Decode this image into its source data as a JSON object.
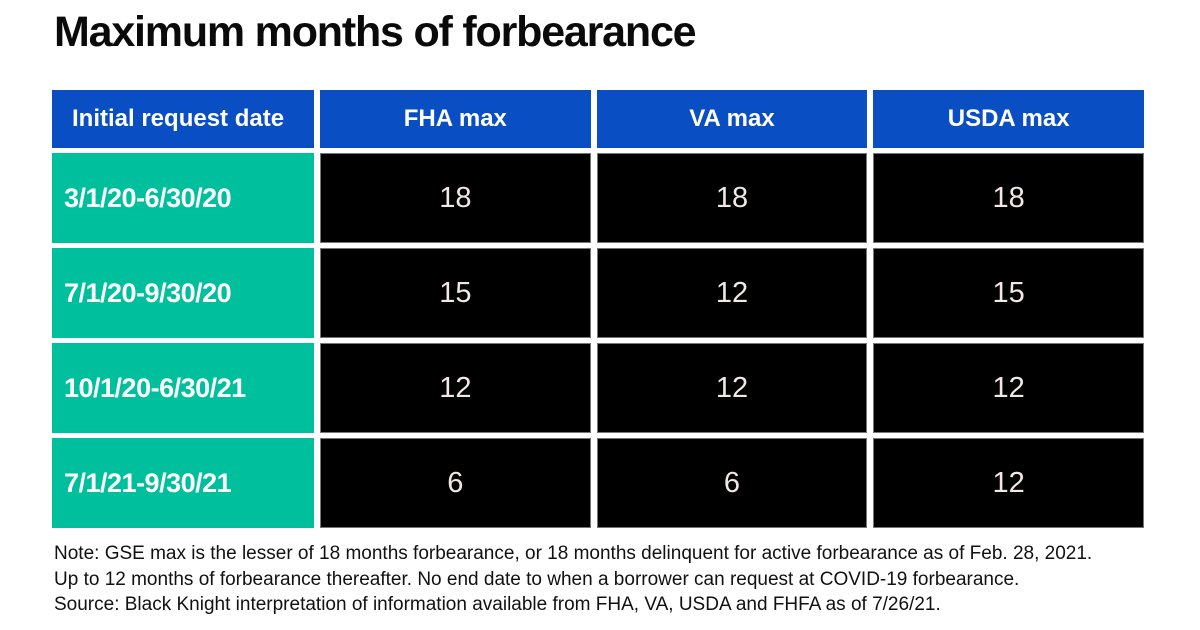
{
  "title": "Maximum months of forbearance",
  "colors": {
    "header_bg": "#0a4ec4",
    "date_bg": "#00bf9d",
    "value_bg": "#000000",
    "header_text": "#ffffff",
    "date_text": "#ffffff",
    "value_text": "#f2e7e7",
    "title_text": "#0a0a0a",
    "note_text": "#111111"
  },
  "table": {
    "columns": [
      "Initial request date",
      "FHA max",
      "VA max",
      "USDA max"
    ],
    "rows": [
      {
        "date": "3/1/20-6/30/20",
        "values": [
          "18",
          "18",
          "18"
        ]
      },
      {
        "date": "7/1/20-9/30/20",
        "values": [
          "15",
          "12",
          "15"
        ]
      },
      {
        "date": "10/1/20-6/30/21",
        "values": [
          "12",
          "12",
          "12"
        ]
      },
      {
        "date": "7/1/21-9/30/21",
        "values": [
          "6",
          "6",
          "12"
        ]
      }
    ]
  },
  "notes": [
    "Note: GSE max is the lesser of 18 months forbearance, or 18 months delinquent for active forbearance as of Feb. 28, 2021.",
    "Up to 12 months of forbearance thereafter. No end date to when a borrower can request at COVID-19 forbearance.",
    "Source: Black Knight interpretation of information available from FHA, VA, USDA and FHFA as of 7/26/21."
  ],
  "chart_data": {
    "type": "table",
    "title": "Maximum months of forbearance",
    "columns": [
      "Initial request date",
      "FHA max",
      "VA max",
      "USDA max"
    ],
    "rows": [
      [
        "3/1/20-6/30/20",
        18,
        18,
        18
      ],
      [
        "7/1/20-9/30/20",
        15,
        12,
        15
      ],
      [
        "10/1/20-6/30/21",
        12,
        12,
        12
      ],
      [
        "7/1/21-9/30/21",
        6,
        6,
        12
      ]
    ],
    "notes": [
      "Note: GSE max is the lesser of 18 months forbearance, or 18 months delinquent for active forbearance as of Feb. 28, 2021.",
      "Up to 12 months of forbearance thereafter. No end date to when a borrower can request at COVID-19 forbearance.",
      "Source: Black Knight interpretation of information available from FHA, VA, USDA and FHFA as of 7/26/21."
    ]
  }
}
